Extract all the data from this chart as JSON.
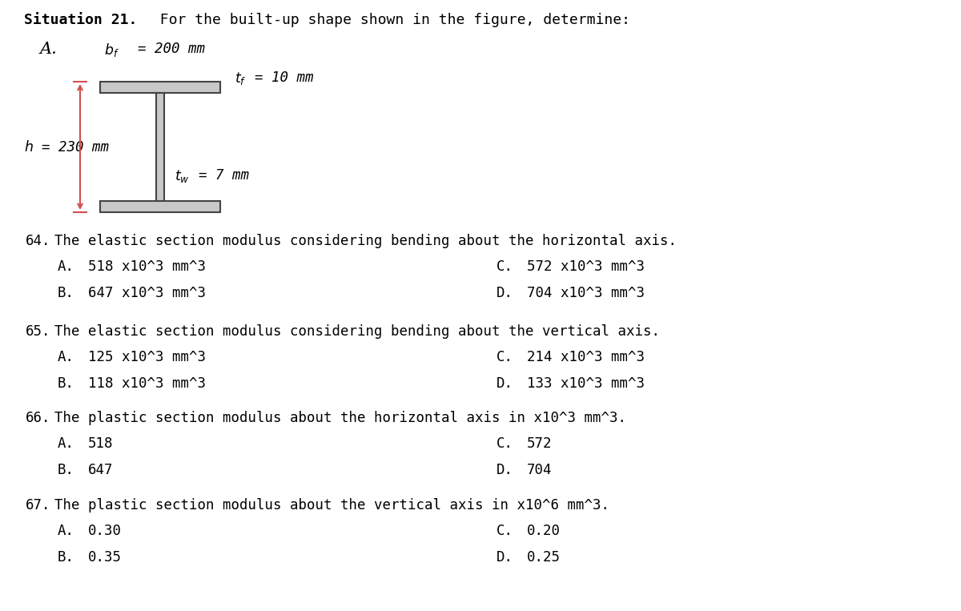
{
  "bg_color": "#ffffff",
  "text_color": "#000000",
  "arrow_color": "#d05050",
  "i_beam_color": "#c8c8c8",
  "i_beam_edge": "#444444",
  "questions": [
    {
      "number": "64.",
      "text": "The elastic section modulus considering bending about the horizontal axis.",
      "options": [
        {
          "letter": "A.",
          "text": "518 x10^3 mm^3"
        },
        {
          "letter": "B.",
          "text": "647 x10^3 mm^3"
        },
        {
          "letter": "C.",
          "text": "572 x10^3 mm^3"
        },
        {
          "letter": "D.",
          "text": "704 x10^3 mm^3"
        }
      ]
    },
    {
      "number": "65.",
      "text": "The elastic section modulus considering bending about the vertical axis.",
      "options": [
        {
          "letter": "A.",
          "text": "125 x10^3 mm^3"
        },
        {
          "letter": "B.",
          "text": "118 x10^3 mm^3"
        },
        {
          "letter": "C.",
          "text": "214 x10^3 mm^3"
        },
        {
          "letter": "D.",
          "text": "133 x10^3 mm^3"
        }
      ]
    },
    {
      "number": "66.",
      "text": "The plastic section modulus about the horizontal axis in x10^3 mm^3.",
      "options": [
        {
          "letter": "A.",
          "text": "518"
        },
        {
          "letter": "B.",
          "text": "647"
        },
        {
          "letter": "C.",
          "text": "572"
        },
        {
          "letter": "D.",
          "text": "704"
        }
      ]
    },
    {
      "number": "67.",
      "text": "The plastic section modulus about the vertical axis in x10^6 mm^3.",
      "options": [
        {
          "letter": "A.",
          "text": "0.30"
        },
        {
          "letter": "B.",
          "text": "0.35"
        },
        {
          "letter": "C.",
          "text": "0.20"
        },
        {
          "letter": "D.",
          "text": "0.25"
        }
      ]
    }
  ],
  "mono_fontsize": 12.5,
  "title_fontsize": 13.0,
  "fig_label_fontsize": 15
}
